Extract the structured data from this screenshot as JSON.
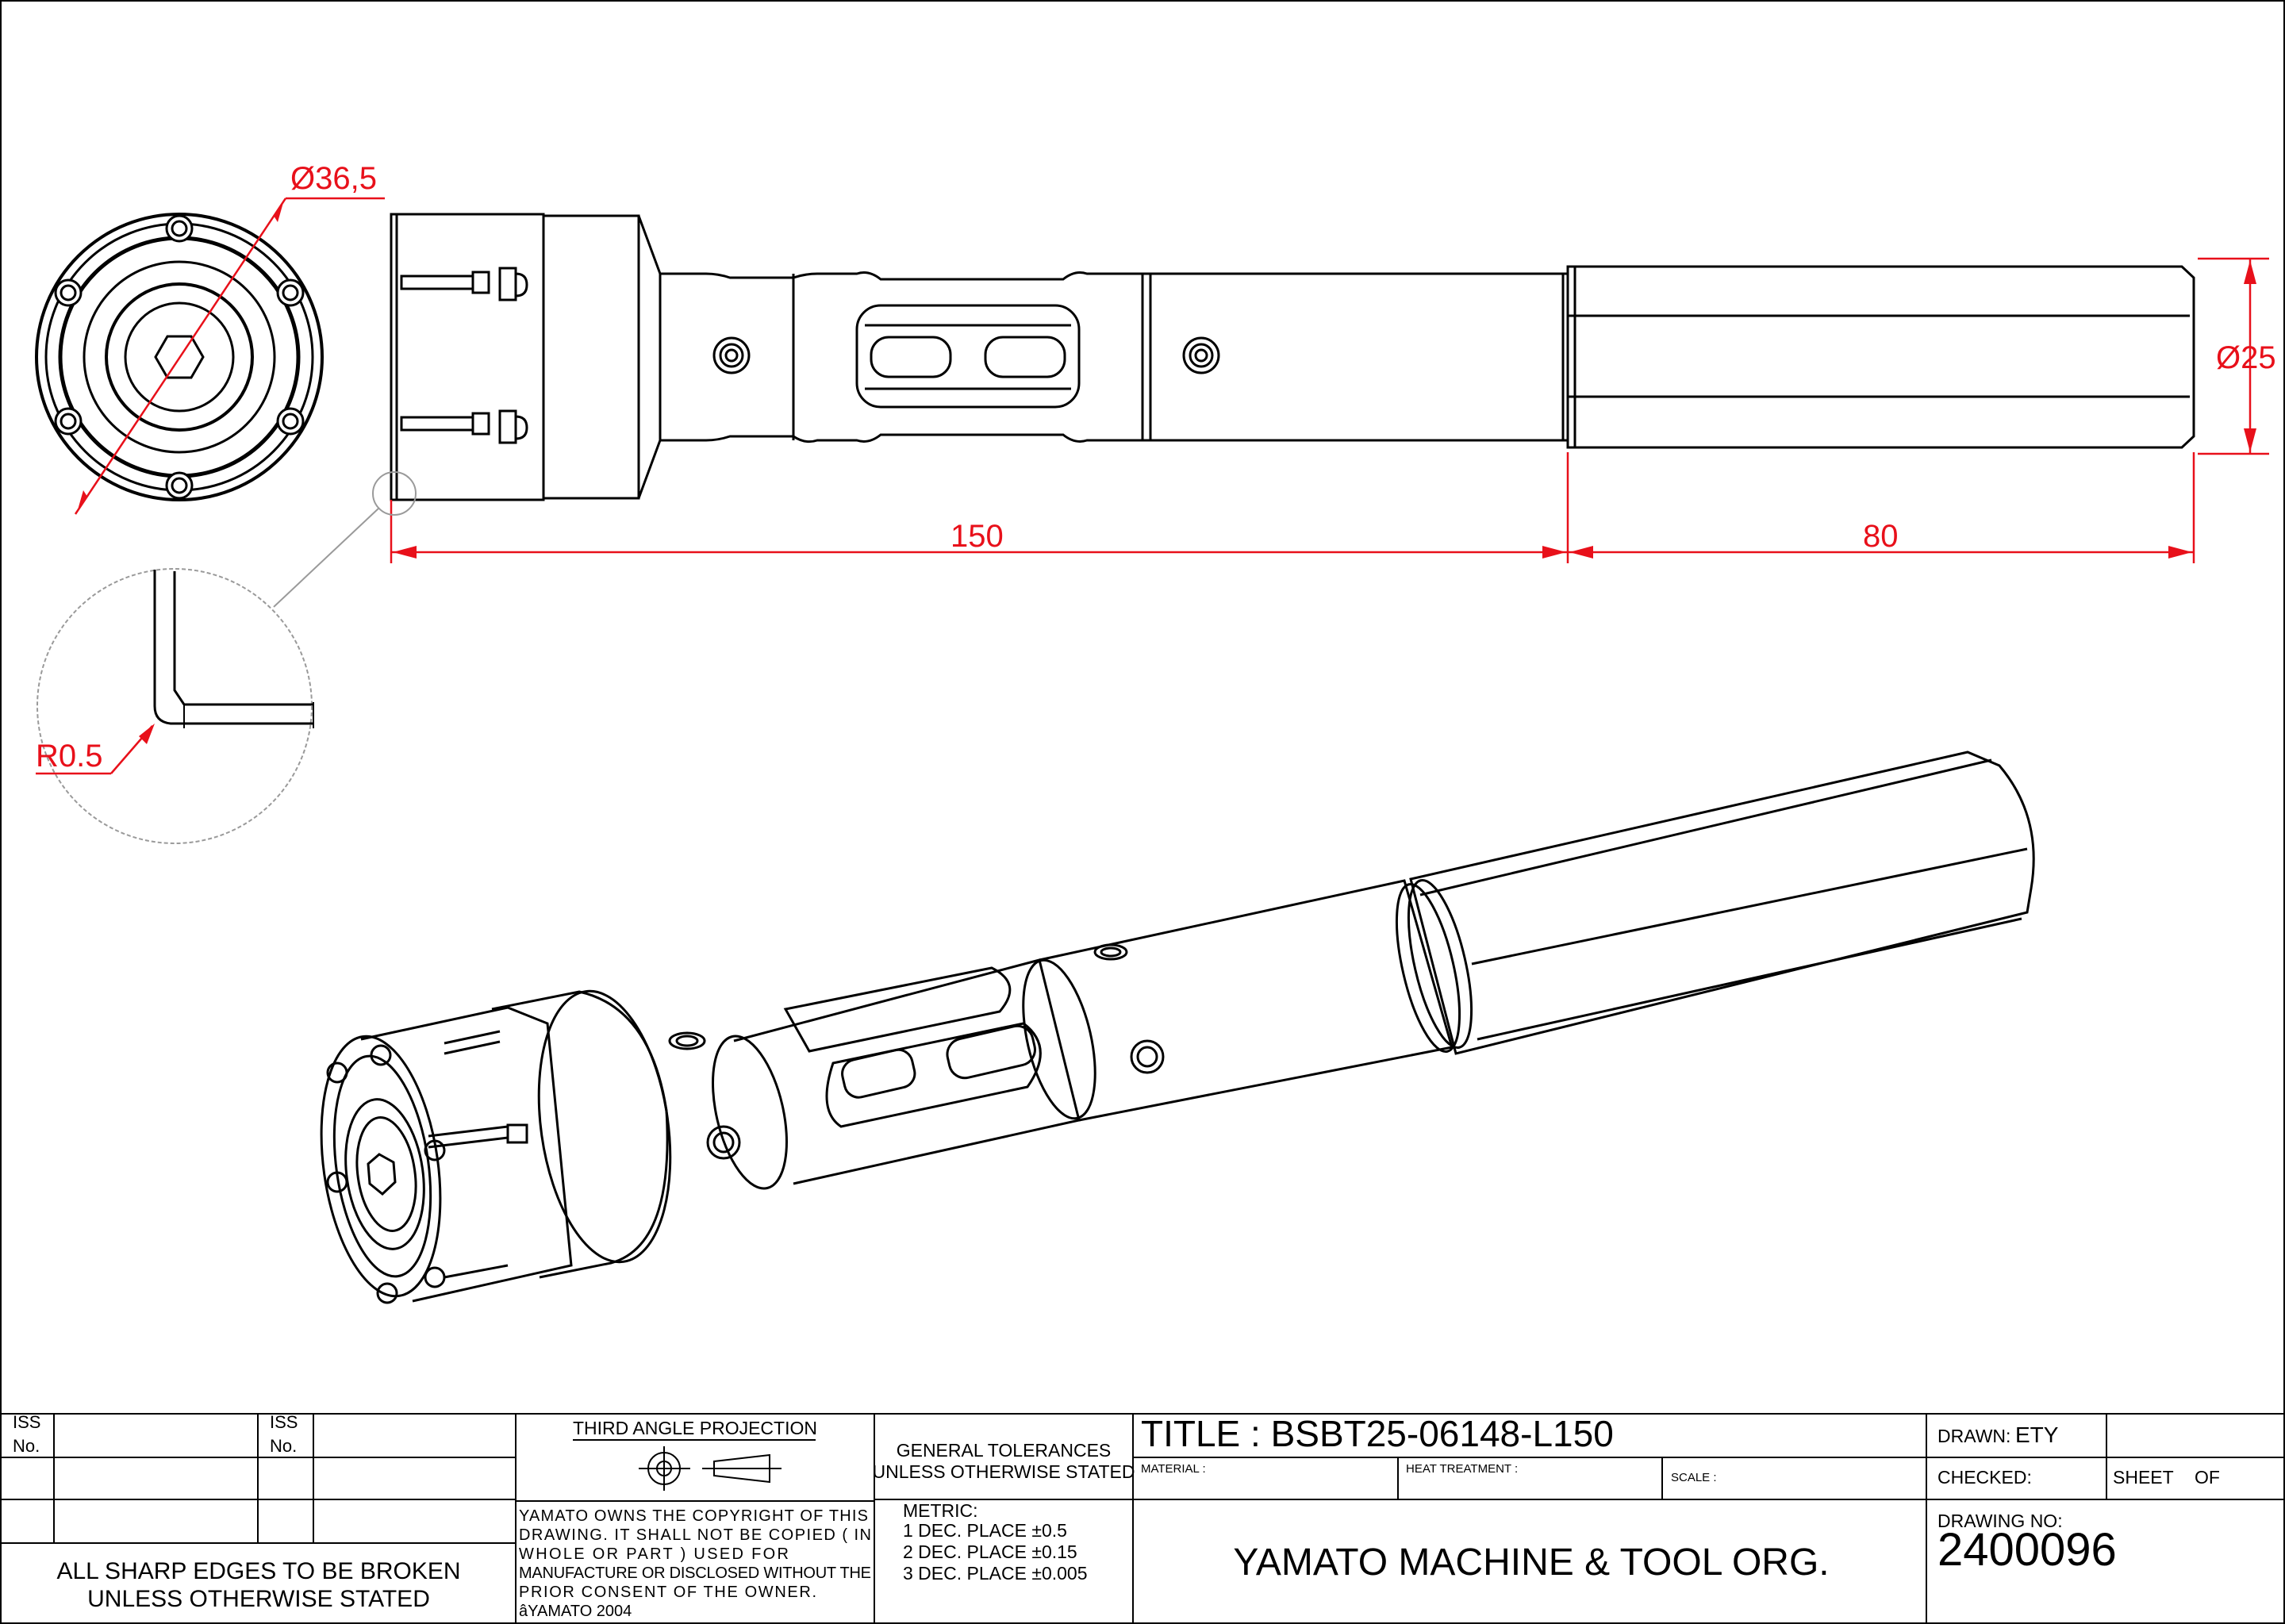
{
  "dimensions": {
    "collet_diameter": "Ø36,5",
    "shank_diameter": "Ø25",
    "body_length": "150",
    "shank_length": "80",
    "edge_radius": "R0.5"
  },
  "title_block": {
    "iss_label_1": "ISS",
    "no_label_1": "No.",
    "iss_label_2": "ISS",
    "no_label_2": "No.",
    "edges_note_line1": "ALL SHARP EDGES TO BE BROKEN",
    "edges_note_line2": "UNLESS OTHERWISE STATED",
    "projection": "THIRD ANGLE PROJECTION",
    "copyright_lines": [
      "YAMATO OWNS THE COPYRIGHT OF THIS",
      "DRAWING. IT SHALL NOT BE COPIED ( IN",
      "WHOLE OR PART ) USED FOR",
      "MANUFACTURE OR DISCLOSED WITHOUT THE",
      "PRIOR CONSENT OF THE OWNER.",
      "âYAMATO 2004"
    ],
    "general_tolerances_line1": "GENERAL TOLERANCES",
    "general_tolerances_line2": "UNLESS OTHERWISE STATED",
    "metric_label": "METRIC:",
    "tolerances": [
      "1 DEC. PLACE  ±0.5",
      "2 DEC. PLACE  ±0.15",
      "3 DEC. PLACE  ±0.005"
    ],
    "title": "TITLE : BSBT25-06148-L150",
    "material_label": "MATERIAL :",
    "heat_treatment_label": "HEAT TREATMENT :",
    "scale_label": "SCALE :",
    "company": "YAMATO MACHINE & TOOL ORG.",
    "drawn_label": "DRAWN:",
    "drawn_value": "ETY",
    "checked_label": "CHECKED:",
    "sheet_label": "SHEET",
    "of_label": "OF",
    "drawing_no_label": "DRAWING NO:",
    "drawing_no": "2400096"
  },
  "colors": {
    "dimension": "#e8101a",
    "ink": "#000000",
    "detail_circle": "#9a9a9a"
  }
}
